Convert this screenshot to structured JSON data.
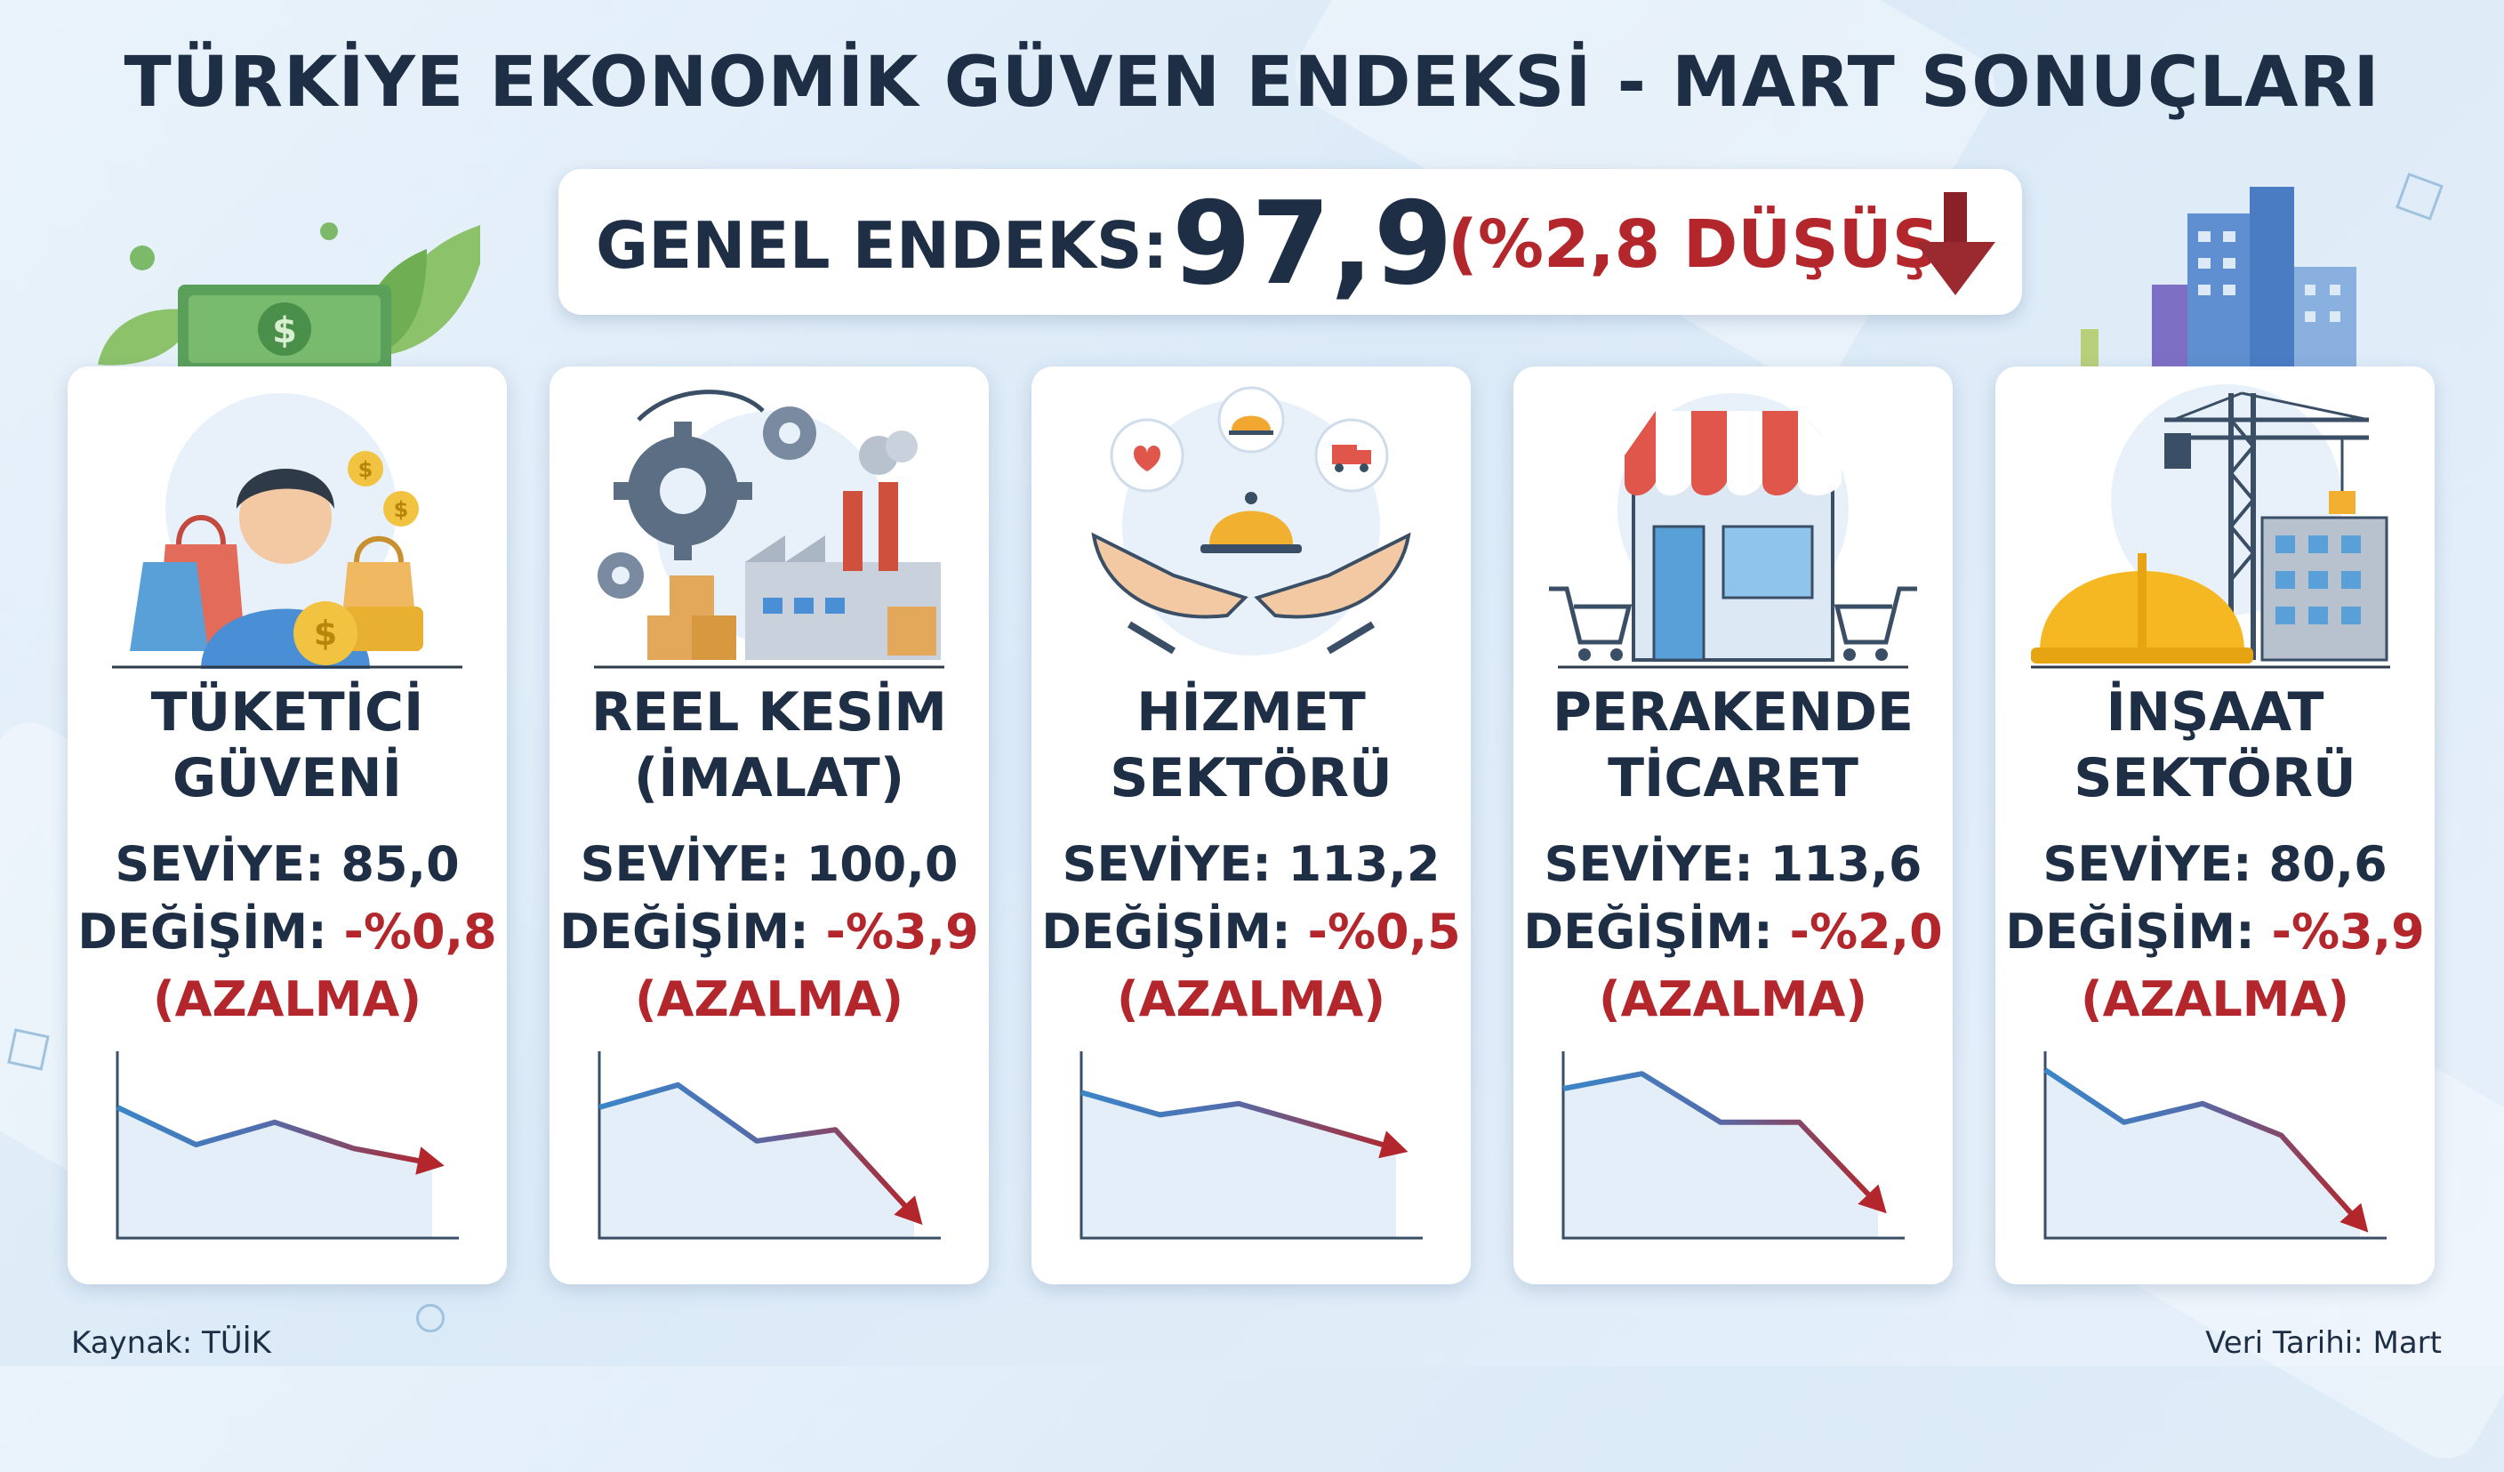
{
  "title": "TÜRKİYE EKONOMİK GÜVEN ENDEKSİ - MART SONUÇLARI",
  "banner": {
    "label": "GENEL ENDEKS:",
    "value": "97,9",
    "change": "(%2,8 DÜŞÜŞ)",
    "icon": "arrow-down-icon"
  },
  "colors": {
    "navy": "#1d2e45",
    "red": "#b3262b",
    "blue": "#3a86c8"
  },
  "cards": [
    {
      "icon": "consumer-shopping-icon",
      "title_l1": "TÜKETİCİ",
      "title_l2": "GÜVENİ",
      "level_label": "SEVİYE:",
      "level": "85,0",
      "change_label": "DEĞİŞİM:",
      "change": "-%0,8",
      "status": "(AZALMA)",
      "trend": [
        70,
        50,
        62,
        48,
        40
      ]
    },
    {
      "icon": "factory-gears-icon",
      "title_l1": "REEL KESİM",
      "title_l2": "(İMALAT)",
      "level_label": "SEVİYE:",
      "level": "100,0",
      "change_label": "DEĞİŞİM:",
      "change": "-%3,9",
      "status": "(AZALMA)",
      "trend": [
        70,
        82,
        52,
        58,
        12
      ]
    },
    {
      "icon": "service-hands-icon",
      "title_l1": "HİZMET",
      "title_l2": "SEKTÖRÜ",
      "level_label": "SEVİYE:",
      "level": "113,2",
      "change_label": "DEĞİŞİM:",
      "change": "-%0,5",
      "status": "(AZALMA)",
      "trend": [
        78,
        66,
        72,
        60,
        48
      ]
    },
    {
      "icon": "store-front-icon",
      "title_l1": "PERAKENDE",
      "title_l2": "TİCARET",
      "level_label": "SEVİYE:",
      "level": "113,6",
      "change_label": "DEĞİŞİM:",
      "change": "-%2,0",
      "status": "(AZALMA)",
      "trend": [
        80,
        88,
        62,
        62,
        18
      ]
    },
    {
      "icon": "construction-crane-icon",
      "title_l1": "İNŞAAT",
      "title_l2": "SEKTÖRÜ",
      "level_label": "SEVİYE:",
      "level": "80,6",
      "change_label": "DEĞİŞİM:",
      "change": "-%3,9",
      "status": "(AZALMA)",
      "trend": [
        90,
        62,
        72,
        55,
        8
      ]
    }
  ],
  "footer": {
    "source": "Kaynak: TÜİK",
    "date": "Veri Tarihi: Mart"
  }
}
